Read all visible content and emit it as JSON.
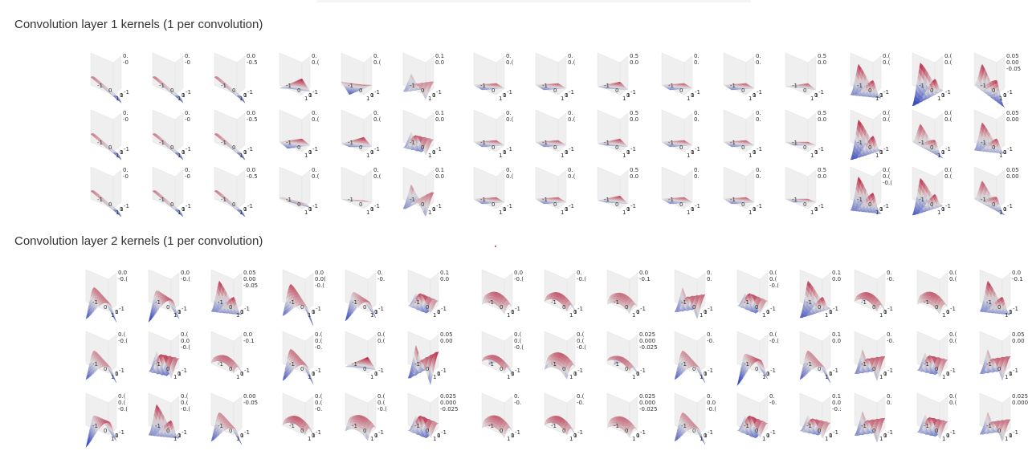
{
  "colors": {
    "colormap": "coolwarm",
    "low": "#3b4cc0",
    "mid": "#dddcdc",
    "high": "#b40426",
    "pane": "#efefef",
    "axis_text": "#2f2f2f",
    "stray_dot": "#d9263b"
  },
  "chart_data": [
    {
      "type": "surface",
      "title": "Convolution layer 1 kernels (1 per convolution)",
      "colormap": "coolwarm",
      "layout": {
        "groups": 5,
        "rows": 3,
        "cols_per_group": 3
      },
      "x_ticks": [
        "-1",
        "0",
        "1"
      ],
      "y_ticks": [
        "-1",
        "0",
        "1"
      ],
      "kernels": [
        [
          {
            "kind": "ramp",
            "a": 0.7,
            "t": 0,
            "z": [
              "0.",
              "-0"
            ]
          },
          {
            "kind": "ramp",
            "a": 0.7,
            "t": 0,
            "z": [
              "0.",
              "-0"
            ]
          },
          {
            "kind": "ramp",
            "a": 0.7,
            "t": 0,
            "z": [
              "0.0",
              "-0.5"
            ]
          },
          {
            "kind": "plane",
            "a": 0.8,
            "t": 0.2,
            "z": [
              "0.",
              "0.("
            ]
          },
          {
            "kind": "plane",
            "a": 0.8,
            "t": -0.2,
            "z": [
              "0.",
              "0.("
            ]
          },
          {
            "kind": "wave",
            "a": 0.5,
            "t": 0,
            "z": [
              "0.1",
              "0.0"
            ]
          },
          {
            "kind": "plane",
            "a": 0.7,
            "t": 0,
            "z": [
              "0.",
              "0.("
            ]
          },
          {
            "kind": "plane",
            "a": 0.7,
            "t": 0,
            "z": [
              "0.",
              "0.("
            ]
          },
          {
            "kind": "plane",
            "a": 0.7,
            "t": 0.1,
            "z": [
              "0.5",
              "0.0"
            ]
          },
          {
            "kind": "plane",
            "a": 0.7,
            "t": 0,
            "z": [
              "0.",
              "0."
            ]
          },
          {
            "kind": "plane",
            "a": 0.7,
            "t": 0,
            "z": [
              "0.",
              "0."
            ]
          },
          {
            "kind": "plane",
            "a": 0.6,
            "t": 0.1,
            "z": [
              "0.5",
              "0.0"
            ]
          },
          {
            "kind": "valley",
            "a": 0.8,
            "t": 0,
            "z": [
              "0.(",
              "0.("
            ]
          },
          {
            "kind": "valley",
            "a": 0.9,
            "t": 0.3,
            "z": [
              "0.(",
              "0.("
            ]
          },
          {
            "kind": "valley",
            "a": 0.8,
            "t": -0.3,
            "z": [
              "0.05",
              "0.00",
              "-0.05"
            ]
          }
        ],
        [
          {
            "kind": "ramp",
            "a": 0.7,
            "t": 0,
            "z": [
              "0.",
              "-0"
            ]
          },
          {
            "kind": "ramp",
            "a": 0.7,
            "t": 0,
            "z": [
              "0.",
              "-0"
            ]
          },
          {
            "kind": "ramp",
            "a": 0.7,
            "t": 0,
            "z": [
              "0.0",
              "-0.5"
            ]
          },
          {
            "kind": "plane",
            "a": 0.8,
            "t": 0,
            "z": [
              "0.",
              "0.("
            ]
          },
          {
            "kind": "plane",
            "a": 0.8,
            "t": 0.1,
            "z": [
              "0.",
              "0.("
            ]
          },
          {
            "kind": "wave",
            "a": 0.7,
            "t": 0.2,
            "z": [
              "0.1",
              "0.0"
            ]
          },
          {
            "kind": "plane",
            "a": 0.7,
            "t": 0,
            "z": [
              "0.",
              "0.("
            ]
          },
          {
            "kind": "plane",
            "a": 0.7,
            "t": 0,
            "z": [
              "0.",
              "0.("
            ]
          },
          {
            "kind": "plane",
            "a": 0.7,
            "t": 0.1,
            "z": [
              "0.5",
              "0.0"
            ]
          },
          {
            "kind": "plane",
            "a": 0.7,
            "t": 0,
            "z": [
              "0.",
              "0."
            ]
          },
          {
            "kind": "plane",
            "a": 0.7,
            "t": 0,
            "z": [
              "0.",
              "0."
            ]
          },
          {
            "kind": "plane",
            "a": 0.6,
            "t": 0,
            "z": [
              "0.5",
              "0.0"
            ]
          },
          {
            "kind": "valley",
            "a": 0.9,
            "t": 0.2,
            "z": [
              "0.(",
              "0.("
            ]
          },
          {
            "kind": "valley",
            "a": 0.6,
            "t": -0.2,
            "z": [
              "0.(",
              "0.("
            ]
          },
          {
            "kind": "valley",
            "a": 0.7,
            "t": 0,
            "z": [
              "0.05",
              "0.00"
            ]
          }
        ],
        [
          {
            "kind": "ramp",
            "a": 0.7,
            "t": 0,
            "z": [
              "0.",
              "-0"
            ]
          },
          {
            "kind": "ramp",
            "a": 0.7,
            "t": 0,
            "z": [
              "0.",
              "-0"
            ]
          },
          {
            "kind": "ramp",
            "a": 0.7,
            "t": 0,
            "z": [
              "0.0",
              "-0.5"
            ]
          },
          {
            "kind": "ramp",
            "a": 0.5,
            "t": 0.3,
            "z": [
              "0.",
              "0.("
            ]
          },
          {
            "kind": "plane",
            "a": 0.5,
            "t": 0,
            "z": [
              "0.",
              "0.("
            ]
          },
          {
            "kind": "wave",
            "a": 0.5,
            "t": -0.2,
            "z": [
              "0.1",
              "0.0"
            ]
          },
          {
            "kind": "plane",
            "a": 0.7,
            "t": 0,
            "z": [
              "0.",
              "0.("
            ]
          },
          {
            "kind": "plane",
            "a": 0.7,
            "t": 0,
            "z": [
              "0.",
              "0.("
            ]
          },
          {
            "kind": "plane",
            "a": 0.7,
            "t": 0.1,
            "z": [
              "0.5",
              "0.0"
            ]
          },
          {
            "kind": "plane",
            "a": 0.7,
            "t": 0,
            "z": [
              "0.",
              "0."
            ]
          },
          {
            "kind": "plane",
            "a": 0.7,
            "t": 0,
            "z": [
              "0.",
              "0."
            ]
          },
          {
            "kind": "plane",
            "a": 0.6,
            "t": 0,
            "z": [
              "0.5",
              "0.0"
            ]
          },
          {
            "kind": "valley",
            "a": 0.9,
            "t": 0,
            "z": [
              "0.(",
              "0.(",
              "-0.("
            ]
          },
          {
            "kind": "valley",
            "a": 0.8,
            "t": 0.2,
            "z": [
              "0.(",
              "0.("
            ]
          },
          {
            "kind": "valley",
            "a": 0.6,
            "t": -0.2,
            "z": [
              "0.05",
              "0.00"
            ]
          }
        ]
      ]
    },
    {
      "type": "surface",
      "title": "Convolution layer 2 kernels (1 per convolution)",
      "colormap": "coolwarm",
      "layout": {
        "groups": 5,
        "rows": 3,
        "cols_per_group": 3
      },
      "x_ticks": [
        "-1",
        "0",
        "1"
      ],
      "y_ticks": [
        "-1",
        "0",
        "1"
      ],
      "kernels": [
        [
          {
            "kind": "ridge",
            "a": 0.9,
            "t": 0,
            "z": [
              "0.0",
              "-0.("
            ]
          },
          {
            "kind": "ridge",
            "a": 0.9,
            "t": 0.2,
            "z": [
              "0.0",
              "-0.("
            ]
          },
          {
            "kind": "valley",
            "a": 0.8,
            "t": 0,
            "z": [
              "0.05",
              "0.00",
              "-0.05"
            ]
          },
          {
            "kind": "ridge",
            "a": 0.9,
            "t": -0.2,
            "z": [
              "0.0",
              "0.0(",
              "-0.("
            ]
          },
          {
            "kind": "ridge",
            "a": 0.8,
            "t": 0.2,
            "z": [
              "0.",
              "-0."
            ]
          },
          {
            "kind": "wave",
            "a": 0.7,
            "t": 0.3,
            "z": [
              "0.1",
              "0.0"
            ]
          },
          {
            "kind": "dome",
            "a": 0.9,
            "t": 0,
            "z": [
              "0.0",
              "-0.("
            ]
          },
          {
            "kind": "dome",
            "a": 0.9,
            "t": 0.2,
            "z": [
              "0.",
              "-0.("
            ]
          },
          {
            "kind": "dome",
            "a": 0.8,
            "t": 0,
            "z": [
              "0.0",
              "-0.1"
            ]
          },
          {
            "kind": "wave",
            "a": 0.8,
            "t": 0,
            "z": [
              "0.",
              "0."
            ]
          },
          {
            "kind": "wave",
            "a": 0.7,
            "t": 0.3,
            "z": [
              "0.(",
              "0.(",
              "-0.("
            ]
          },
          {
            "kind": "valley",
            "a": 0.8,
            "t": 0.2,
            "z": [
              "0.1",
              "0.0"
            ]
          },
          {
            "kind": "dome",
            "a": 0.9,
            "t": 0.2,
            "z": [
              "0.",
              "-0."
            ]
          },
          {
            "kind": "dome",
            "a": 0.9,
            "t": 0,
            "z": [
              "0.(",
              "0.("
            ]
          },
          {
            "kind": "valley",
            "a": 0.8,
            "t": 0,
            "z": [
              "0.0",
              "-0.1"
            ]
          }
        ],
        [
          {
            "kind": "ridge",
            "a": 0.8,
            "t": 0,
            "z": [
              "0.(",
              "-0.("
            ]
          },
          {
            "kind": "wave",
            "a": 0.9,
            "t": 0.2,
            "z": [
              "0.(",
              "0.0",
              "-0.("
            ]
          },
          {
            "kind": "dome",
            "a": 0.8,
            "t": 0.2,
            "z": [
              "0.0",
              "-0.1"
            ]
          },
          {
            "kind": "ridge",
            "a": 0.9,
            "t": 0,
            "z": [
              "0.(",
              "0.(",
              "-0."
            ]
          },
          {
            "kind": "plane",
            "a": 0.8,
            "t": 0.2,
            "z": [
              "0.(",
              "0.("
            ]
          },
          {
            "kind": "wave",
            "a": 0.9,
            "t": -0.2,
            "z": [
              "0.05",
              "0.00"
            ]
          },
          {
            "kind": "dome",
            "a": 0.8,
            "t": 0.3,
            "z": [
              "0.(",
              "0.(",
              "-0.("
            ]
          },
          {
            "kind": "dome",
            "a": 0.9,
            "t": -0.2,
            "z": [
              "0.(",
              "0.(",
              "-0.("
            ]
          },
          {
            "kind": "dome",
            "a": 0.7,
            "t": 0.3,
            "z": [
              "0.025",
              "0.000",
              "-0.025"
            ]
          },
          {
            "kind": "ridge",
            "a": 0.8,
            "t": 0,
            "z": [
              "0.",
              "-0."
            ]
          },
          {
            "kind": "ridge",
            "a": 0.9,
            "t": 0.3,
            "z": [
              "0.(",
              "-0.("
            ]
          },
          {
            "kind": "ridge",
            "a": 0.8,
            "t": 0,
            "z": [
              "0.1",
              "0.0"
            ]
          },
          {
            "kind": "wave",
            "a": 0.8,
            "t": 0,
            "z": [
              "0.",
              "-0."
            ]
          },
          {
            "kind": "wave",
            "a": 0.8,
            "t": 0.2,
            "z": [
              "0.(",
              "0.("
            ]
          },
          {
            "kind": "wave",
            "a": 0.8,
            "t": 0,
            "z": [
              "0.05",
              "0.00"
            ]
          }
        ],
        [
          {
            "kind": "ridge",
            "a": 0.9,
            "t": 0.3,
            "z": [
              "0.(",
              "0.(",
              "-0.("
            ]
          },
          {
            "kind": "valley",
            "a": 0.8,
            "t": 0,
            "z": [
              "0.(",
              "0.(",
              "-0.("
            ]
          },
          {
            "kind": "ridge",
            "a": 0.8,
            "t": 0,
            "z": [
              "0.00",
              "-0.05"
            ]
          },
          {
            "kind": "dome",
            "a": 0.9,
            "t": 0.2,
            "z": [
              "0.(",
              "0.(",
              "-0."
            ]
          },
          {
            "kind": "dome",
            "a": 0.8,
            "t": -0.2,
            "z": [
              "0.(",
              "0.(",
              "-0.("
            ]
          },
          {
            "kind": "wave",
            "a": 0.8,
            "t": 0.3,
            "z": [
              "0.025",
              "0.000",
              "-0.025"
            ]
          },
          {
            "kind": "dome",
            "a": 0.9,
            "t": 0,
            "z": [
              "0.",
              "-0."
            ]
          },
          {
            "kind": "dome",
            "a": 0.9,
            "t": 0.2,
            "z": [
              "0.(",
              "-0."
            ]
          },
          {
            "kind": "dome",
            "a": 0.8,
            "t": 0,
            "z": [
              "0.025",
              "0.000",
              "-0.025"
            ]
          },
          {
            "kind": "ridge",
            "a": 0.8,
            "t": 0,
            "z": [
              "0.",
              "0.0",
              "-0.("
            ]
          },
          {
            "kind": "wave",
            "a": 0.8,
            "t": 0.3,
            "z": [
              "0.",
              "-0."
            ]
          },
          {
            "kind": "wave",
            "a": 0.7,
            "t": 0.2,
            "z": [
              "0.1",
              "0.0",
              "-0.:"
            ]
          },
          {
            "kind": "wave",
            "a": 0.8,
            "t": 0,
            "z": [
              "0.",
              "0."
            ]
          },
          {
            "kind": "wave",
            "a": 0.8,
            "t": 0.2,
            "z": [
              "0.(",
              "0.("
            ]
          },
          {
            "kind": "wave",
            "a": 0.7,
            "t": 0,
            "z": [
              "0.025",
              "0.000"
            ]
          }
        ]
      ]
    }
  ]
}
